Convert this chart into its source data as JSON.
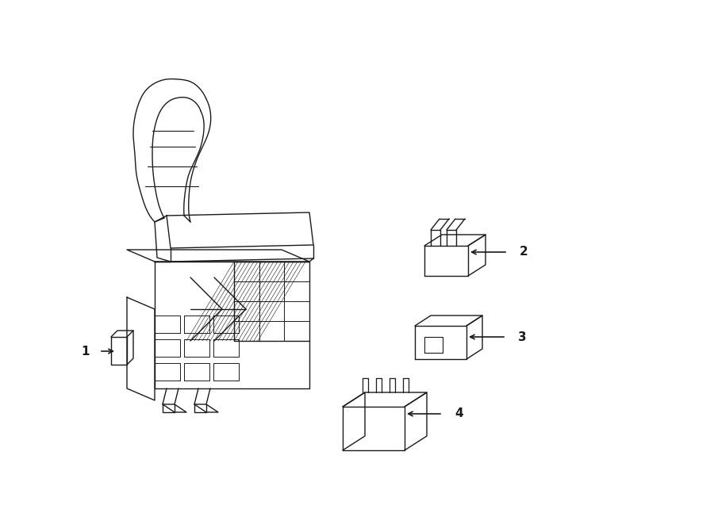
{
  "bg_color": "#ffffff",
  "line_color": "#1a1a1a",
  "lw": 1.0,
  "fig_width": 9.0,
  "fig_height": 6.61
}
